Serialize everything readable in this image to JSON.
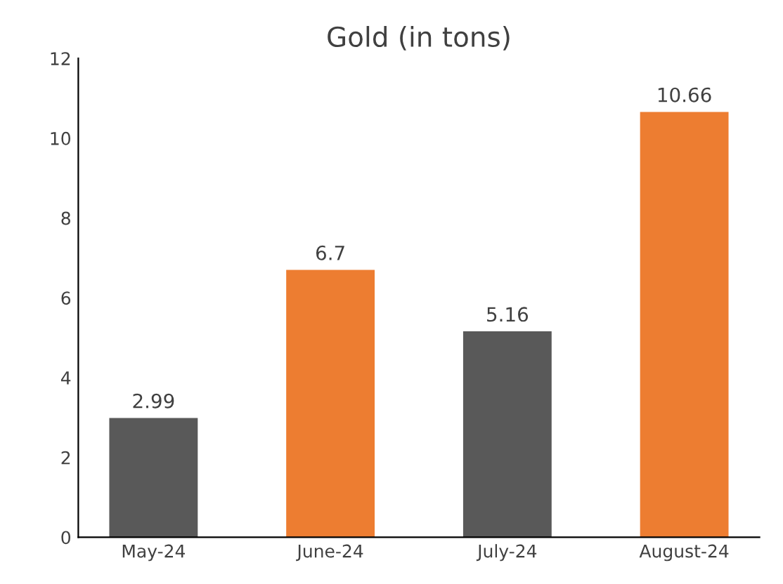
{
  "chart_data": {
    "type": "bar",
    "title": "Gold (in tons)",
    "categories": [
      "May-24",
      "June-24",
      "July-24",
      "August-24"
    ],
    "values": [
      2.99,
      6.7,
      5.16,
      10.66
    ],
    "colors": [
      "#595959",
      "#ed7d31",
      "#595959",
      "#ed7d31"
    ],
    "ylim": [
      0,
      12
    ],
    "yticks": [
      0,
      2,
      4,
      6,
      8,
      10,
      12
    ],
    "grid": false,
    "data_labels": true
  }
}
